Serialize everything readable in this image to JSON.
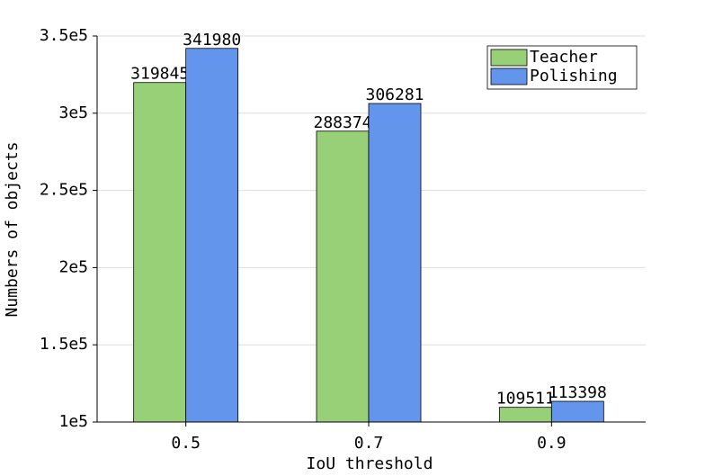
{
  "chart_data": {
    "type": "bar",
    "xlabel": "IoU threshold",
    "ylabel": "Numbers of objects",
    "categories": [
      "0.5",
      "0.7",
      "0.9"
    ],
    "series": [
      {
        "name": "Teacher",
        "color": "#98d077",
        "values": [
          319845,
          288374,
          109511
        ]
      },
      {
        "name": "Polishing",
        "color": "#6495ed",
        "values": [
          341980,
          306281,
          113398
        ]
      }
    ],
    "ylim": [
      100000,
      350000
    ],
    "yticks": [
      {
        "value": 100000,
        "label": "1e5"
      },
      {
        "value": 150000,
        "label": "1.5e5"
      },
      {
        "value": 200000,
        "label": "2e5"
      },
      {
        "value": 250000,
        "label": "2.5e5"
      },
      {
        "value": 300000,
        "label": "3e5"
      },
      {
        "value": 350000,
        "label": "3.5e5"
      }
    ],
    "grid": true,
    "legend": "upper right"
  }
}
